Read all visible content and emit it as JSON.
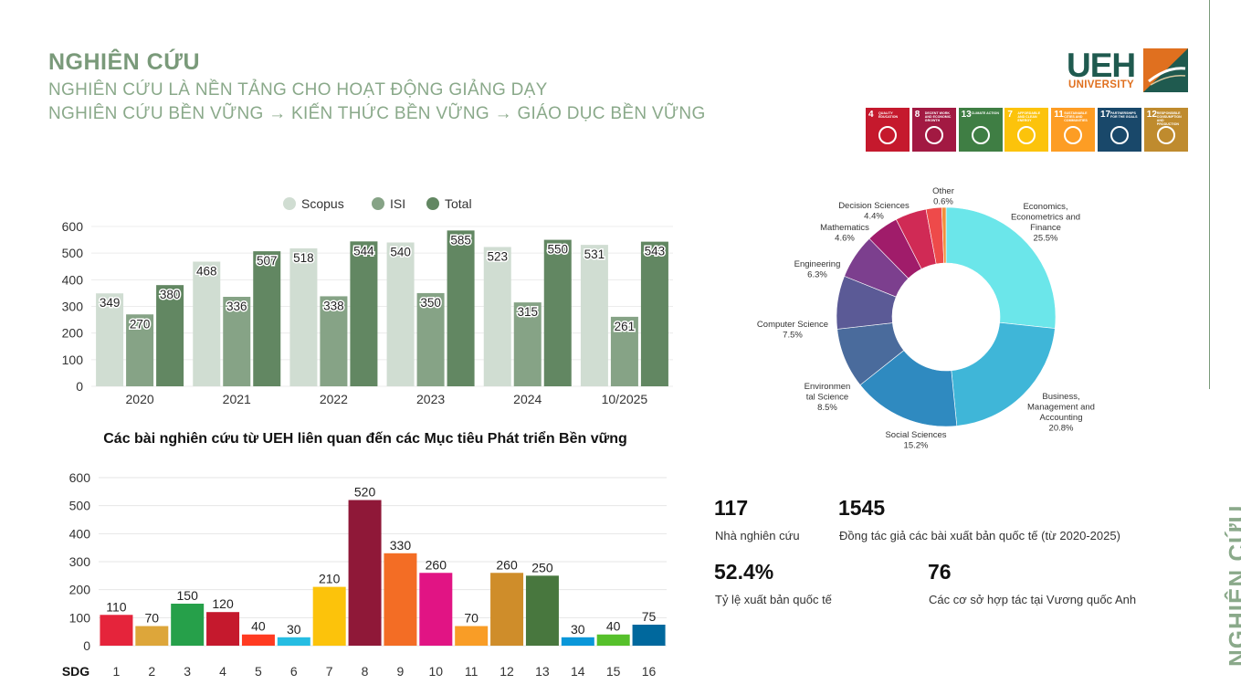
{
  "header": {
    "title": "NGHIÊN CỨU",
    "subtitle1": "NGHIÊN CỨU LÀ NỀN TẢNG CHO HOẠT ĐỘNG GIẢNG DẠY",
    "subtitle2": "NGHIÊN CỨU BỀN VỮNG → KIẾN THỨC BỀN VỮNG  → GIÁO DỤC BỀN VỮNG"
  },
  "side_label": "NGHIÊN CỨU",
  "logo": {
    "name": "UEH",
    "sub": "UNIVERSITY",
    "accent": "#e0701f",
    "brand": "#1f5a4f"
  },
  "sdg_badges": [
    {
      "num": "4",
      "label": "Quality Education",
      "color": "#c5192d"
    },
    {
      "num": "8",
      "label": "Decent Work and Economic Growth",
      "color": "#a21942"
    },
    {
      "num": "13",
      "label": "Climate Action",
      "color": "#3f7e44"
    },
    {
      "num": "7",
      "label": "Affordable and Clean Energy",
      "color": "#fcc30b"
    },
    {
      "num": "11",
      "label": "Sustainable Cities and Communities",
      "color": "#fd9d24"
    },
    {
      "num": "17",
      "label": "Partnerships for the Goals",
      "color": "#19486a"
    },
    {
      "num": "12",
      "label": "Responsible Consumption and Production",
      "color": "#bf8b2e"
    }
  ],
  "chart_data": [
    {
      "type": "bar",
      "categories": [
        "2020",
        "2021",
        "2022",
        "2023",
        "2024",
        "10/2025"
      ],
      "series": [
        {
          "name": "Scopus",
          "values": [
            349,
            468,
            518,
            540,
            523,
            531
          ],
          "color": "#d0ddd2"
        },
        {
          "name": "ISI",
          "values": [
            270,
            336,
            338,
            350,
            315,
            261
          ],
          "color": "#86a386"
        },
        {
          "name": "Total",
          "values": [
            380,
            507,
            544,
            585,
            550,
            543
          ],
          "color": "#628762"
        }
      ],
      "yticks": [
        "0",
        "100",
        "200",
        "300",
        "400",
        "500",
        "600"
      ],
      "ylim": [
        0,
        600
      ],
      "legend": "top",
      "title": ""
    },
    {
      "type": "bar",
      "title": "Các bài nghiên cứu từ UEH liên quan đến các Mục tiêu Phát triển Bền vững",
      "xlabel": "SDG",
      "categories": [
        "1",
        "2",
        "3",
        "4",
        "5",
        "6",
        "7",
        "8",
        "9",
        "10",
        "11",
        "12",
        "13",
        "14",
        "15",
        "16"
      ],
      "values": [
        110,
        70,
        150,
        120,
        40,
        30,
        210,
        520,
        330,
        260,
        70,
        260,
        250,
        30,
        40,
        75
      ],
      "colors": [
        "#e5243b",
        "#dda63a",
        "#26a04a",
        "#c5192d",
        "#ff3a21",
        "#26bde2",
        "#fcc30b",
        "#8f1838",
        "#f36d25",
        "#e11484",
        "#f99d26",
        "#cf8d2a",
        "#48773e",
        "#0a97d9",
        "#56c02b",
        "#00689d"
      ],
      "yticks": [
        "0",
        "100",
        "200",
        "300",
        "400",
        "500",
        "600"
      ],
      "ylim": [
        0,
        600
      ]
    },
    {
      "type": "pie",
      "style": "donut",
      "slices": [
        {
          "label": "Economics, Econometrics and Finance",
          "pct": "25.5%",
          "value": 25.5,
          "color": "#6be6ea"
        },
        {
          "label": "Business, Management and Accounting",
          "pct": "20.8%",
          "value": 20.8,
          "color": "#3fb6d8"
        },
        {
          "label": "Social Sciences",
          "pct": "15.2%",
          "value": 15.2,
          "color": "#2f8ac0"
        },
        {
          "label": "Environmental Science",
          "pct": "8.5%",
          "value": 8.5,
          "color": "#4a6b9c"
        },
        {
          "label": "Computer Science",
          "pct": "7.5%",
          "value": 7.5,
          "color": "#5b5a96"
        },
        {
          "label": "Engineering",
          "pct": "6.3%",
          "value": 6.3,
          "color": "#7c3f8e"
        },
        {
          "label": "Mathematics",
          "pct": "4.6%",
          "value": 4.6,
          "color": "#a01c6a"
        },
        {
          "label": "Decision Sciences",
          "pct": "4.4%",
          "value": 4.4,
          "color": "#d02a55"
        },
        {
          "label": "Other",
          "pct": "0.6%",
          "value": 0.6,
          "color": "#f0903a"
        }
      ],
      "extra_slice_color": "#ee4a4a",
      "extra_slice_value": 2.2
    }
  ],
  "stats": [
    {
      "num": "117",
      "label": "Nhà nghiên cứu"
    },
    {
      "num": "1545",
      "label": "Đồng tác giả các bài xuất bản quốc tế (từ 2020-2025)"
    },
    {
      "num": "52.4%",
      "label": "Tỷ lệ xuất bản quốc tế"
    },
    {
      "num": "76",
      "label": "Các cơ sở hợp tác tại Vương quốc Anh"
    }
  ]
}
